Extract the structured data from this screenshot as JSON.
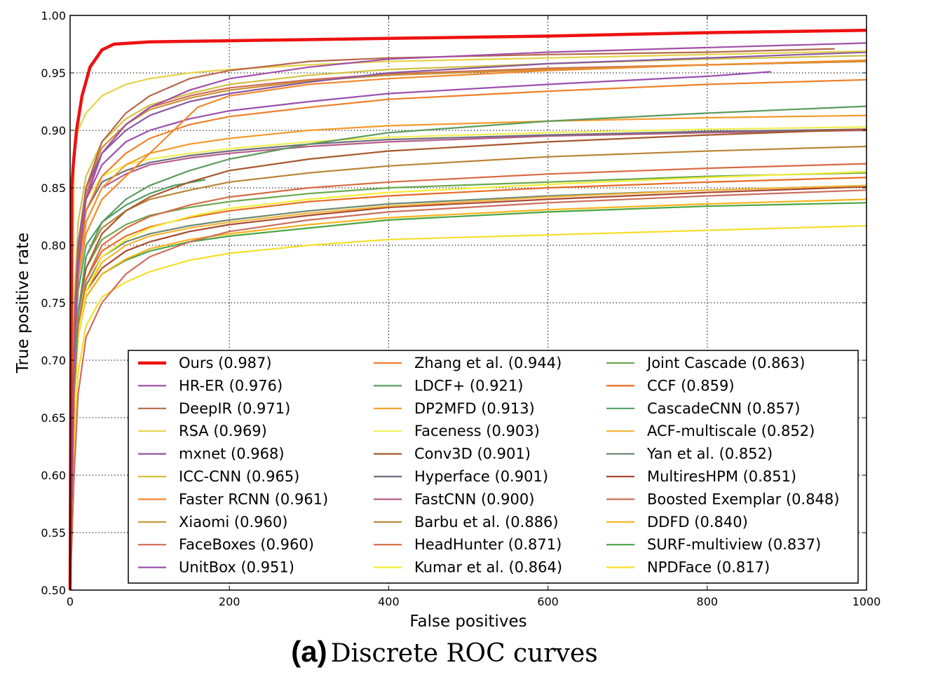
{
  "caption": {
    "letter": "(a)",
    "text": "Discrete ROC curves"
  },
  "chart_data": {
    "type": "line",
    "xlabel": "False positives",
    "ylabel": "True positive rate",
    "xlim": [
      0,
      1000
    ],
    "ylim": [
      0.5,
      1.0
    ],
    "xticks": [
      "0",
      "200",
      "400",
      "600",
      "800",
      "1000"
    ],
    "yticks": [
      "0.50",
      "0.55",
      "0.60",
      "0.65",
      "0.70",
      "0.75",
      "0.80",
      "0.85",
      "0.90",
      "0.95",
      "1.00"
    ],
    "grid": true,
    "legend_position": "lower-right",
    "series": [
      {
        "name": "Ours (0.987)",
        "color": "#ee1111",
        "width": 4.5,
        "x": [
          0,
          2,
          4,
          8,
          15,
          25,
          40,
          55,
          100,
          200,
          400,
          600,
          800,
          1000
        ],
        "y": [
          0.5,
          0.85,
          0.87,
          0.9,
          0.93,
          0.955,
          0.97,
          0.975,
          0.977,
          0.978,
          0.98,
          0.982,
          0.985,
          0.987
        ]
      },
      {
        "name": "HR-ER (0.976)",
        "color": "#a24fa8",
        "x": [
          0,
          5,
          10,
          20,
          40,
          70,
          100,
          150,
          200,
          300,
          400,
          600,
          800,
          1000
        ],
        "y": [
          0.5,
          0.7,
          0.78,
          0.84,
          0.88,
          0.905,
          0.92,
          0.935,
          0.945,
          0.955,
          0.962,
          0.968,
          0.972,
          0.976
        ]
      },
      {
        "name": "DeepIR (0.971)",
        "color": "#b5674b",
        "x": [
          0,
          5,
          10,
          20,
          40,
          70,
          100,
          150,
          200,
          300,
          400,
          600,
          800,
          960
        ],
        "y": [
          0.5,
          0.72,
          0.79,
          0.85,
          0.89,
          0.915,
          0.93,
          0.945,
          0.952,
          0.96,
          0.963,
          0.966,
          0.968,
          0.971
        ]
      },
      {
        "name": "RSA (0.969)",
        "color": "#e5d24a",
        "x": [
          0,
          5,
          10,
          20,
          40,
          70,
          100,
          150,
          200,
          300,
          400,
          600,
          800,
          1000
        ],
        "y": [
          0.5,
          0.88,
          0.9,
          0.915,
          0.93,
          0.94,
          0.945,
          0.95,
          0.953,
          0.957,
          0.96,
          0.963,
          0.966,
          0.969
        ]
      },
      {
        "name": "mxnet (0.968)",
        "color": "#8a59a0",
        "x": [
          0,
          5,
          10,
          20,
          40,
          70,
          100,
          150,
          200,
          300,
          400,
          600,
          800,
          1000
        ],
        "y": [
          0.5,
          0.73,
          0.8,
          0.85,
          0.88,
          0.9,
          0.913,
          0.925,
          0.932,
          0.942,
          0.95,
          0.958,
          0.963,
          0.968
        ]
      },
      {
        "name": "ICC-CNN (0.965)",
        "color": "#d1c143",
        "x": [
          0,
          5,
          10,
          20,
          40,
          70,
          100,
          150,
          200,
          300,
          400,
          600,
          800,
          1000
        ],
        "y": [
          0.5,
          0.75,
          0.82,
          0.86,
          0.89,
          0.91,
          0.922,
          0.932,
          0.94,
          0.948,
          0.953,
          0.958,
          0.962,
          0.965
        ]
      },
      {
        "name": "Faster RCNN (0.961)",
        "color": "#f28a2e",
        "x": [
          0,
          5,
          10,
          20,
          40,
          70,
          100,
          130,
          160,
          200,
          300,
          400,
          600,
          800,
          1000
        ],
        "y": [
          0.5,
          0.7,
          0.77,
          0.81,
          0.84,
          0.86,
          0.88,
          0.9,
          0.92,
          0.93,
          0.94,
          0.945,
          0.952,
          0.957,
          0.961
        ]
      },
      {
        "name": "Xiaomi (0.960)",
        "color": "#c99233",
        "x": [
          0,
          5,
          10,
          20,
          40,
          70,
          100,
          150,
          200,
          300,
          400,
          600,
          800,
          1000
        ],
        "y": [
          0.5,
          0.73,
          0.8,
          0.85,
          0.885,
          0.905,
          0.918,
          0.928,
          0.935,
          0.943,
          0.948,
          0.953,
          0.957,
          0.96
        ]
      },
      {
        "name": "FaceBoxes (0.960)",
        "color": "#d36a58",
        "x": [
          0,
          5,
          10,
          20,
          40,
          70,
          100,
          150,
          200,
          300,
          400,
          600,
          800,
          1000
        ],
        "y": [
          0.5,
          0.72,
          0.79,
          0.845,
          0.88,
          0.905,
          0.92,
          0.93,
          0.937,
          0.944,
          0.949,
          0.954,
          0.957,
          0.96
        ]
      },
      {
        "name": "UnitBox (0.951)",
        "color": "#9b4fb0",
        "x": [
          0,
          5,
          10,
          20,
          40,
          70,
          100,
          150,
          200,
          300,
          400,
          600,
          800,
          880
        ],
        "y": [
          0.5,
          0.72,
          0.79,
          0.84,
          0.87,
          0.89,
          0.9,
          0.91,
          0.917,
          0.925,
          0.932,
          0.94,
          0.947,
          0.951
        ]
      },
      {
        "name": "Zhang et al. (0.944)",
        "color": "#f07f26",
        "x": [
          0,
          5,
          10,
          20,
          40,
          70,
          100,
          150,
          200,
          300,
          400,
          600,
          800,
          1000
        ],
        "y": [
          0.5,
          0.71,
          0.78,
          0.83,
          0.86,
          0.88,
          0.893,
          0.905,
          0.912,
          0.92,
          0.927,
          0.934,
          0.94,
          0.944
        ]
      },
      {
        "name": "LDCF+ (0.921)",
        "color": "#5c9a5e",
        "x": [
          0,
          5,
          10,
          20,
          40,
          70,
          100,
          150,
          200,
          300,
          400,
          600,
          800,
          1000
        ],
        "y": [
          0.5,
          0.68,
          0.74,
          0.79,
          0.82,
          0.84,
          0.852,
          0.865,
          0.875,
          0.888,
          0.898,
          0.908,
          0.915,
          0.921
        ]
      },
      {
        "name": "DP2MFD (0.913)",
        "color": "#f59a2a",
        "x": [
          0,
          5,
          10,
          20,
          40,
          70,
          100,
          150,
          200,
          300,
          400,
          600,
          800,
          1000
        ],
        "y": [
          0.5,
          0.7,
          0.77,
          0.82,
          0.85,
          0.87,
          0.88,
          0.888,
          0.893,
          0.9,
          0.904,
          0.908,
          0.911,
          0.913
        ]
      },
      {
        "name": "Faceness (0.903)",
        "color": "#f1ef52",
        "x": [
          0,
          5,
          10,
          20,
          40,
          70,
          100,
          150,
          200,
          300,
          400,
          600,
          800,
          1000
        ],
        "y": [
          0.5,
          0.72,
          0.79,
          0.84,
          0.86,
          0.87,
          0.875,
          0.88,
          0.884,
          0.89,
          0.894,
          0.898,
          0.901,
          0.903
        ]
      },
      {
        "name": "Conv3D (0.901)",
        "color": "#a6592d",
        "x": [
          0,
          5,
          10,
          20,
          40,
          70,
          100,
          150,
          200,
          300,
          400,
          600,
          800,
          1000
        ],
        "y": [
          0.5,
          0.68,
          0.74,
          0.78,
          0.81,
          0.83,
          0.842,
          0.855,
          0.865,
          0.875,
          0.882,
          0.89,
          0.896,
          0.901
        ]
      },
      {
        "name": "Hyperface (0.901)",
        "color": "#6e6e7e",
        "x": [
          0,
          5,
          10,
          20,
          40,
          70,
          100,
          150,
          200,
          300,
          400,
          600,
          800,
          1000
        ],
        "y": [
          0.5,
          0.71,
          0.78,
          0.83,
          0.855,
          0.865,
          0.872,
          0.878,
          0.882,
          0.888,
          0.892,
          0.896,
          0.899,
          0.901
        ]
      },
      {
        "name": "FastCNN (0.900)",
        "color": "#b85c8a",
        "x": [
          0,
          5,
          10,
          20,
          40,
          70,
          100,
          150,
          200,
          300,
          400,
          600,
          800,
          1000
        ],
        "y": [
          0.5,
          0.7,
          0.77,
          0.82,
          0.85,
          0.862,
          0.87,
          0.876,
          0.88,
          0.886,
          0.89,
          0.895,
          0.898,
          0.9
        ]
      },
      {
        "name": "Barbu et al. (0.886)",
        "color": "#b98535",
        "x": [
          0,
          5,
          10,
          20,
          40,
          70,
          100,
          150,
          200,
          300,
          400,
          600,
          800,
          1000
        ],
        "y": [
          0.5,
          0.68,
          0.74,
          0.79,
          0.815,
          0.83,
          0.84,
          0.848,
          0.855,
          0.863,
          0.869,
          0.877,
          0.882,
          0.886
        ]
      },
      {
        "name": "HeadHunter (0.871)",
        "color": "#d86b45",
        "x": [
          0,
          5,
          10,
          20,
          40,
          70,
          100,
          150,
          200,
          300,
          400,
          600,
          800,
          1000
        ],
        "y": [
          0.5,
          0.67,
          0.73,
          0.77,
          0.8,
          0.815,
          0.825,
          0.835,
          0.842,
          0.85,
          0.855,
          0.862,
          0.867,
          0.871
        ]
      },
      {
        "name": "Kumar et al. (0.864)",
        "color": "#f3ee35",
        "x": [
          0,
          5,
          10,
          20,
          40,
          70,
          100,
          150,
          200,
          300,
          400,
          600,
          800,
          1000
        ],
        "y": [
          0.5,
          0.66,
          0.72,
          0.76,
          0.79,
          0.805,
          0.815,
          0.825,
          0.832,
          0.84,
          0.846,
          0.853,
          0.859,
          0.864
        ]
      },
      {
        "name": "Joint Cascade (0.863)",
        "color": "#6aa84f",
        "x": [
          0,
          5,
          10,
          20,
          40,
          70,
          100,
          150,
          200,
          300,
          400,
          600,
          800,
          1000
        ],
        "y": [
          0.5,
          0.68,
          0.74,
          0.78,
          0.805,
          0.818,
          0.826,
          0.833,
          0.838,
          0.845,
          0.85,
          0.855,
          0.86,
          0.863
        ]
      },
      {
        "name": "CCF (0.859)",
        "color": "#e86b25",
        "x": [
          0,
          5,
          10,
          20,
          40,
          70,
          100,
          150,
          200,
          300,
          400,
          600,
          800,
          1000
        ],
        "y": [
          0.5,
          0.67,
          0.73,
          0.77,
          0.795,
          0.808,
          0.816,
          0.824,
          0.83,
          0.838,
          0.843,
          0.85,
          0.855,
          0.859
        ]
      },
      {
        "name": "CascadeCNN (0.857)",
        "color": "#4ea065",
        "x": [
          0,
          5,
          10,
          20,
          40,
          70,
          100,
          130,
          170
        ],
        "y": [
          0.5,
          0.7,
          0.76,
          0.8,
          0.82,
          0.835,
          0.845,
          0.852,
          0.857
        ]
      },
      {
        "name": "ACF-multiscale (0.852)",
        "color": "#f5b435",
        "x": [
          0,
          5,
          10,
          20,
          40,
          70,
          100,
          150,
          200,
          300,
          400,
          600,
          800,
          1000
        ],
        "y": [
          0.5,
          0.66,
          0.72,
          0.76,
          0.785,
          0.8,
          0.808,
          0.815,
          0.82,
          0.828,
          0.834,
          0.842,
          0.848,
          0.852
        ]
      },
      {
        "name": "Yan et al. (0.852)",
        "color": "#6d8a74",
        "x": [
          0,
          5,
          10,
          20,
          40,
          70,
          100,
          150,
          200,
          300,
          400,
          600,
          800,
          1000
        ],
        "y": [
          0.5,
          0.67,
          0.73,
          0.765,
          0.79,
          0.803,
          0.81,
          0.817,
          0.822,
          0.83,
          0.836,
          0.843,
          0.848,
          0.852
        ]
      },
      {
        "name": "MultiresHPM (0.851)",
        "color": "#a84a32",
        "x": [
          0,
          5,
          10,
          20,
          40,
          70,
          100,
          150,
          200,
          300,
          400,
          600,
          800,
          1000
        ],
        "y": [
          0.5,
          0.66,
          0.72,
          0.76,
          0.78,
          0.795,
          0.803,
          0.812,
          0.818,
          0.826,
          0.833,
          0.84,
          0.846,
          0.851
        ]
      },
      {
        "name": "Boosted Exemplar (0.848)",
        "color": "#cc6e5e",
        "x": [
          0,
          5,
          10,
          20,
          40,
          70,
          100,
          150,
          200,
          300,
          400,
          600,
          800,
          1000
        ],
        "y": [
          0.5,
          0.6,
          0.67,
          0.72,
          0.75,
          0.775,
          0.79,
          0.803,
          0.812,
          0.822,
          0.829,
          0.837,
          0.843,
          0.848
        ]
      },
      {
        "name": "DDFD (0.840)",
        "color": "#f7b21c",
        "x": [
          0,
          5,
          10,
          20,
          40,
          70,
          100,
          150,
          200,
          300,
          400,
          600,
          800,
          1000
        ],
        "y": [
          0.5,
          0.66,
          0.72,
          0.755,
          0.775,
          0.788,
          0.797,
          0.805,
          0.81,
          0.818,
          0.824,
          0.831,
          0.836,
          0.84
        ]
      },
      {
        "name": "SURF-multiview (0.837)",
        "color": "#49a642",
        "x": [
          0,
          5,
          10,
          20,
          40,
          70,
          100,
          150,
          200,
          300,
          400,
          600,
          800,
          1000
        ],
        "y": [
          0.5,
          0.66,
          0.72,
          0.755,
          0.775,
          0.787,
          0.795,
          0.803,
          0.808,
          0.815,
          0.822,
          0.829,
          0.834,
          0.837
        ]
      },
      {
        "name": "NPDFace (0.817)",
        "color": "#f5df2a",
        "x": [
          0,
          5,
          10,
          20,
          40,
          70,
          100,
          150,
          200,
          300,
          400,
          600,
          800,
          1000
        ],
        "y": [
          0.5,
          0.63,
          0.69,
          0.73,
          0.755,
          0.768,
          0.777,
          0.787,
          0.793,
          0.8,
          0.805,
          0.809,
          0.813,
          0.817
        ]
      }
    ]
  }
}
